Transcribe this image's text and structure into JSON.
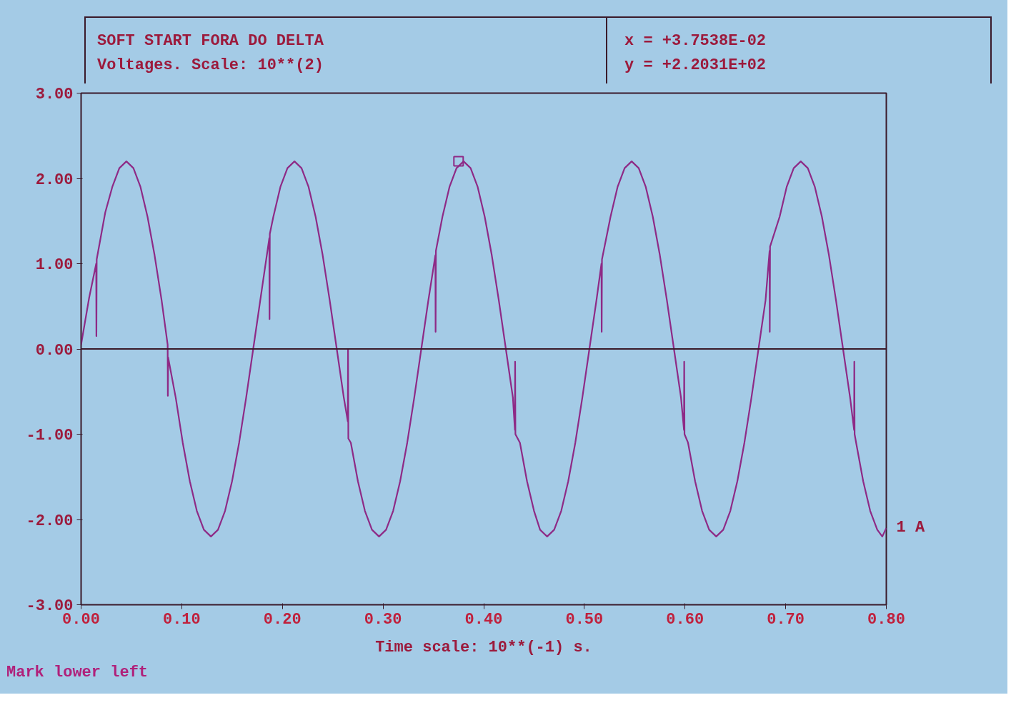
{
  "chart_data": {
    "type": "line",
    "title": "SOFT START FORA DO DELTA",
    "subtitle": "Voltages. Scale: 10**(2)",
    "xlabel": "Time scale: 10**(-1) s.",
    "annotations": [
      "x = +3.7538E-02",
      "y = +2.2031E+02",
      "Mark lower left"
    ],
    "xlim": [
      0,
      0.8
    ],
    "ylim": [
      -3,
      3
    ],
    "xticks": [
      {
        "value": 0,
        "label": "0.00"
      },
      {
        "value": 0.1,
        "label": "0.10"
      },
      {
        "value": 0.2,
        "label": "0.20"
      },
      {
        "value": 0.3,
        "label": "0.30"
      },
      {
        "value": 0.4,
        "label": "0.40"
      },
      {
        "value": 0.5,
        "label": "0.50"
      },
      {
        "value": 0.6,
        "label": "0.60"
      },
      {
        "value": 0.7,
        "label": "0.70"
      },
      {
        "value": 0.8,
        "label": "0.80"
      }
    ],
    "yticks": [
      {
        "value": -3,
        "label": "-3.00"
      },
      {
        "value": -2,
        "label": "-2.00"
      },
      {
        "value": -1,
        "label": "-1.00"
      },
      {
        "value": 0,
        "label": "0.00"
      },
      {
        "value": 1,
        "label": "1.00"
      },
      {
        "value": 2,
        "label": "2.00"
      },
      {
        "value": 3,
        "label": "3.00"
      }
    ],
    "ref_lines": [
      {
        "axis": "y",
        "value": 0,
        "color": "#3a1a2a"
      }
    ],
    "series": [
      {
        "name": "1 A",
        "color": "#8e2a86",
        "line_style": "solid",
        "x": [
          0.0,
          0.008,
          0.015,
          0.0152,
          0.0155,
          0.024,
          0.031,
          0.038,
          0.045,
          0.052,
          0.059,
          0.066,
          0.073,
          0.08,
          0.086,
          0.0862,
          0.0865,
          0.094,
          0.101,
          0.108,
          0.115,
          0.122,
          0.129,
          0.136,
          0.143,
          0.15,
          0.157,
          0.164,
          0.171,
          0.178,
          0.187,
          0.1872,
          0.1875,
          0.191,
          0.198,
          0.205,
          0.212,
          0.219,
          0.226,
          0.233,
          0.24,
          0.247,
          0.254,
          0.261,
          0.265,
          0.2652,
          0.2655,
          0.268,
          0.275,
          0.282,
          0.289,
          0.296,
          0.303,
          0.31,
          0.317,
          0.324,
          0.331,
          0.338,
          0.345,
          0.352,
          0.3522,
          0.3525,
          0.359,
          0.366,
          0.373,
          0.38,
          0.387,
          0.394,
          0.401,
          0.408,
          0.415,
          0.422,
          0.429,
          0.431,
          0.4312,
          0.4315,
          0.436,
          0.443,
          0.45,
          0.456,
          0.463,
          0.47,
          0.477,
          0.484,
          0.491,
          0.498,
          0.505,
          0.512,
          0.517,
          0.5172,
          0.5175,
          0.526,
          0.533,
          0.54,
          0.547,
          0.554,
          0.561,
          0.568,
          0.575,
          0.582,
          0.589,
          0.596,
          0.599,
          0.5992,
          0.5995,
          0.603,
          0.61,
          0.617,
          0.624,
          0.631,
          0.638,
          0.645,
          0.652,
          0.659,
          0.666,
          0.673,
          0.68,
          0.684,
          0.6842,
          0.6845,
          0.694,
          0.701,
          0.708,
          0.715,
          0.722,
          0.729,
          0.736,
          0.743,
          0.75,
          0.757,
          0.764,
          0.768,
          0.7682,
          0.7685,
          0.77,
          0.777,
          0.784,
          0.791,
          0.796,
          0.8
        ],
        "values": [
          0.05,
          0.6,
          1.0,
          0.15,
          1.05,
          1.6,
          1.9,
          2.12,
          2.2,
          2.12,
          1.9,
          1.55,
          1.1,
          0.57,
          0.05,
          -0.55,
          -0.1,
          -0.57,
          -1.1,
          -1.55,
          -1.9,
          -2.12,
          -2.2,
          -2.12,
          -1.9,
          -1.55,
          -1.1,
          -0.57,
          0,
          0.57,
          1.3,
          0.35,
          1.35,
          1.55,
          1.9,
          2.12,
          2.2,
          2.12,
          1.9,
          1.55,
          1.1,
          0.57,
          0,
          -0.57,
          -0.85,
          0,
          -1.05,
          -1.1,
          -1.55,
          -1.9,
          -2.12,
          -2.2,
          -2.12,
          -1.9,
          -1.55,
          -1.1,
          -0.57,
          0,
          0.57,
          1.1,
          0.2,
          1.15,
          1.55,
          1.9,
          2.12,
          2.2,
          2.12,
          1.9,
          1.55,
          1.1,
          0.57,
          0,
          -0.57,
          -0.95,
          -0.15,
          -1.0,
          -1.1,
          -1.55,
          -1.9,
          -2.12,
          -2.2,
          -2.12,
          -1.9,
          -1.55,
          -1.1,
          -0.57,
          0,
          0.57,
          1.0,
          0.2,
          1.05,
          1.55,
          1.9,
          2.12,
          2.2,
          2.12,
          1.9,
          1.55,
          1.1,
          0.57,
          0,
          -0.57,
          -0.95,
          -0.15,
          -1.0,
          -1.1,
          -1.55,
          -1.9,
          -2.12,
          -2.2,
          -2.12,
          -1.9,
          -1.55,
          -1.1,
          -0.57,
          0,
          0.57,
          1.15,
          0.2,
          1.2,
          1.55,
          1.9,
          2.12,
          2.2,
          2.12,
          1.9,
          1.55,
          1.1,
          0.57,
          0,
          -0.57,
          -0.95,
          -0.15,
          -1.0,
          -1.1,
          -1.55,
          -1.9,
          -2.12,
          -2.2,
          -2.1
        ]
      },
      {
        "type": "scatter",
        "marker": "square",
        "color": "#8e2a86",
        "x": [
          0.375
        ],
        "values": [
          2.2
        ]
      }
    ]
  }
}
